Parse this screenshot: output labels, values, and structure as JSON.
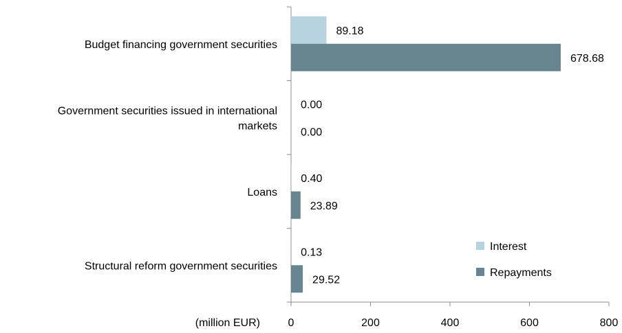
{
  "chart_data": {
    "type": "bar",
    "orientation": "horizontal",
    "categories": [
      [
        "Budget financing government securities"
      ],
      [
        "Government securities issued in international",
        "markets"
      ],
      [
        "Loans"
      ],
      [
        "Structural reform government securities"
      ]
    ],
    "series": [
      {
        "name": "Interest",
        "color": "#b7d3df",
        "values": [
          89.18,
          0.0,
          0.4,
          0.13
        ],
        "labels": [
          "89.18",
          "0.00",
          "0.40",
          "0.13"
        ]
      },
      {
        "name": "Repayments",
        "color": "#66858f",
        "values": [
          678.68,
          0.0,
          23.89,
          29.52
        ],
        "labels": [
          "678.68",
          "0.00",
          "23.89",
          "29.52"
        ]
      }
    ],
    "xlabel": "(million EUR)",
    "xlim": [
      0,
      800
    ],
    "xticks": [
      "0",
      "200",
      "400",
      "600",
      "800"
    ],
    "grid": false,
    "legend_position": "bottom-right"
  }
}
